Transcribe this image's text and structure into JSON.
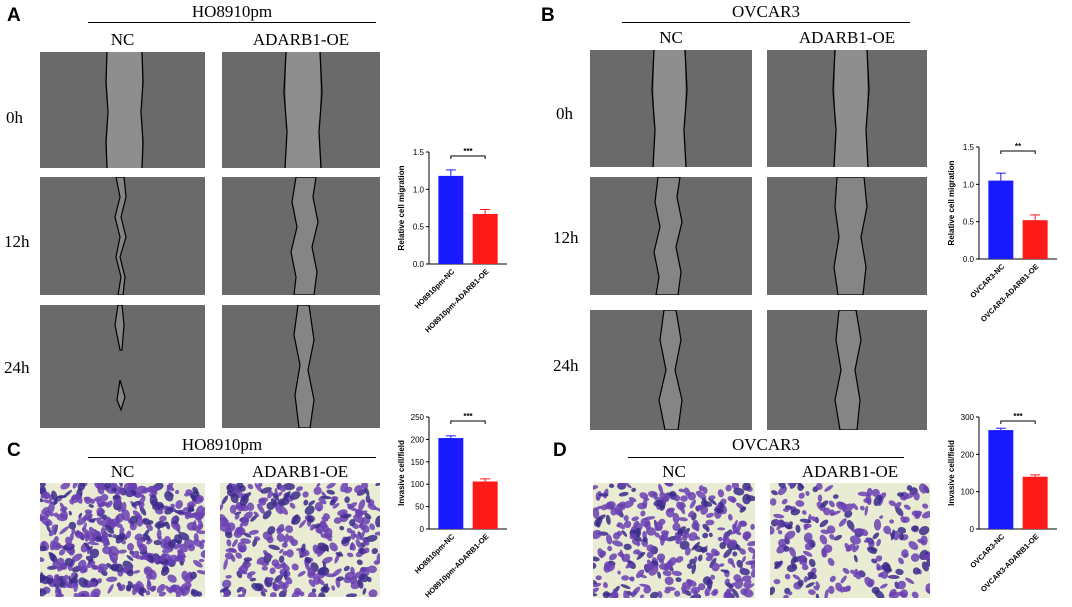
{
  "panels": {
    "A": {
      "letter": "A",
      "title": "HO8910pm",
      "cols": [
        "NC",
        "ADARB1-OE"
      ],
      "rows": [
        "0h",
        "12h",
        "24h"
      ]
    },
    "B": {
      "letter": "B",
      "title": "OVCAR3",
      "cols": [
        "NC",
        "ADARB1-OE"
      ],
      "rows": [
        "0h",
        "12h",
        "24h"
      ]
    },
    "C": {
      "letter": "C",
      "title": "HO8910pm",
      "cols": [
        "NC",
        "ADARB1-OE"
      ]
    },
    "D": {
      "letter": "D",
      "title": "OVCAR3",
      "cols": [
        "NC",
        "ADARB1-OE"
      ]
    }
  },
  "colors": {
    "nc": "#1a1aff",
    "oe": "#ff1a1a",
    "stain": "#6a3fb3",
    "scratch_bg": "#6b6b6b"
  },
  "chart_data": [
    {
      "type": "bar",
      "id": "A-migration",
      "ylabel": "Relative cell migration",
      "categories": [
        "HO8910pm-NC",
        "HO8910pm-ADARB1-OE"
      ],
      "values": [
        1.18,
        0.67
      ],
      "errors": [
        0.08,
        0.06
      ],
      "ylim": [
        0,
        1.5
      ],
      "yticks": [
        "0.0",
        "0.5",
        "1.0",
        "1.5"
      ],
      "significance": "***"
    },
    {
      "type": "bar",
      "id": "B-migration",
      "ylabel": "Relative cell migration",
      "categories": [
        "OVCAR3-NC",
        "OVCAR3-ADARB1-OE"
      ],
      "values": [
        1.05,
        0.52
      ],
      "errors": [
        0.1,
        0.07
      ],
      "ylim": [
        0,
        1.5
      ],
      "yticks": [
        "0.0",
        "0.5",
        "1.0",
        "1.5"
      ],
      "significance": "**"
    },
    {
      "type": "bar",
      "id": "C-invasion",
      "ylabel": "Invasive cell/field",
      "categories": [
        "HO8910pm-NC",
        "HO8910pm-ADARB1-OE"
      ],
      "values": [
        203,
        106
      ],
      "errors": [
        5,
        6
      ],
      "ylim": [
        0,
        250
      ],
      "yticks": [
        "0",
        "50",
        "100",
        "150",
        "200",
        "250"
      ],
      "significance": "***"
    },
    {
      "type": "bar",
      "id": "D-invasion",
      "ylabel": "Invasive cell/field",
      "categories": [
        "OVCAR3-NC",
        "OVCAR3-ADARB1-OE"
      ],
      "values": [
        265,
        140
      ],
      "errors": [
        5,
        5
      ],
      "ylim": [
        0,
        300
      ],
      "yticks": [
        "0",
        "100",
        "200",
        "300"
      ],
      "significance": "***"
    }
  ]
}
